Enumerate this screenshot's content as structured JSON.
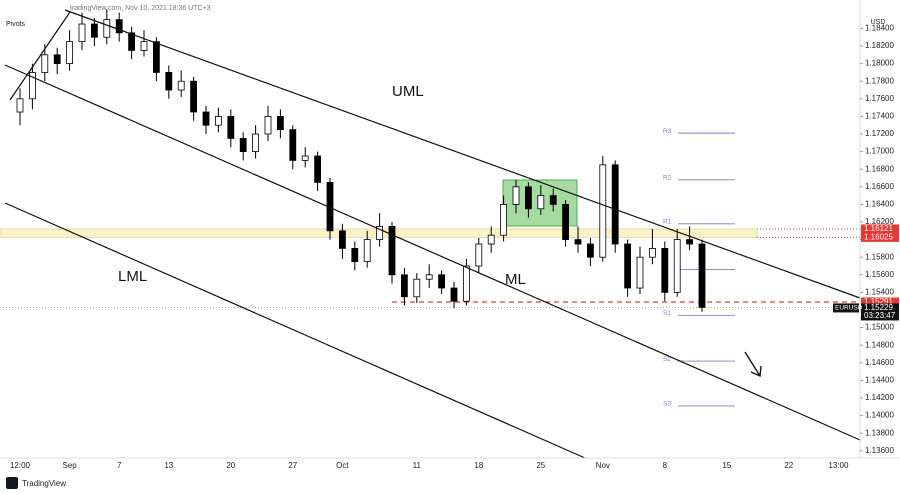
{
  "header": "tradingView.com, Nov 10, 2021 18:36 UTC+3",
  "indicator": "Pivots",
  "footer": "TradingView",
  "chart_data": {
    "type": "candlestick",
    "currency": "USD",
    "categories": [
      "12:00",
      null,
      null,
      null,
      "Sep",
      null,
      null,
      null,
      "7",
      null,
      null,
      null,
      "13",
      null,
      null,
      null,
      null,
      "20",
      null,
      null,
      null,
      null,
      "27",
      null,
      null,
      null,
      "Oct",
      null,
      null,
      null,
      null,
      null,
      "11",
      null,
      null,
      null,
      null,
      "18",
      null,
      null,
      null,
      null,
      "25",
      null,
      null,
      null,
      null,
      "Nov",
      null,
      null,
      null,
      null,
      "8",
      null,
      null,
      null,
      null,
      "15",
      null,
      null,
      null,
      null,
      "22",
      null,
      null,
      null,
      "13:00",
      null
    ],
    "values": [
      [
        1.1745,
        1.1772,
        1.173,
        1.176
      ],
      [
        1.176,
        1.18,
        1.1748,
        1.179
      ],
      [
        1.179,
        1.1822,
        1.178,
        1.181
      ],
      [
        1.181,
        1.1818,
        1.1788,
        1.18
      ],
      [
        1.18,
        1.1838,
        1.1792,
        1.1825
      ],
      [
        1.1825,
        1.1858,
        1.1815,
        1.1845
      ],
      [
        1.1845,
        1.1852,
        1.182,
        1.183
      ],
      [
        1.183,
        1.1862,
        1.1822,
        1.185
      ],
      [
        1.185,
        1.1858,
        1.1825,
        1.1835
      ],
      [
        1.1835,
        1.1842,
        1.1805,
        1.1815
      ],
      [
        1.1815,
        1.1838,
        1.1808,
        1.1825
      ],
      [
        1.1825,
        1.183,
        1.178,
        1.179
      ],
      [
        1.179,
        1.1798,
        1.176,
        1.177
      ],
      [
        1.177,
        1.1792,
        1.1762,
        1.178
      ],
      [
        1.178,
        1.1785,
        1.1735,
        1.1745
      ],
      [
        1.1745,
        1.1752,
        1.172,
        1.173
      ],
      [
        1.173,
        1.175,
        1.1722,
        1.174
      ],
      [
        1.174,
        1.1748,
        1.1705,
        1.1715
      ],
      [
        1.1715,
        1.1722,
        1.169,
        1.17
      ],
      [
        1.17,
        1.173,
        1.1692,
        1.172
      ],
      [
        1.172,
        1.1752,
        1.1712,
        1.174
      ],
      [
        1.174,
        1.1748,
        1.1715,
        1.1725
      ],
      [
        1.1725,
        1.173,
        1.168,
        1.169
      ],
      [
        1.169,
        1.1705,
        1.1682,
        1.1695
      ],
      [
        1.1695,
        1.17,
        1.1655,
        1.1665
      ],
      [
        1.1665,
        1.167,
        1.16,
        1.161
      ],
      [
        1.161,
        1.1618,
        1.1578,
        1.159
      ],
      [
        1.159,
        1.1598,
        1.1565,
        1.1575
      ],
      [
        1.1575,
        1.161,
        1.1568,
        1.16
      ],
      [
        1.16,
        1.163,
        1.1592,
        1.1615
      ],
      [
        1.1615,
        1.162,
        1.155,
        1.156
      ],
      [
        1.156,
        1.1568,
        1.1525,
        1.1535
      ],
      [
        1.1535,
        1.1562,
        1.1528,
        1.1555
      ],
      [
        1.1555,
        1.1572,
        1.1545,
        1.156
      ],
      [
        1.156,
        1.1565,
        1.1538,
        1.1545
      ],
      [
        1.1545,
        1.1552,
        1.1522,
        1.153
      ],
      [
        1.153,
        1.1578,
        1.1525,
        1.157
      ],
      [
        1.157,
        1.1602,
        1.1562,
        1.1595
      ],
      [
        1.1595,
        1.1615,
        1.1585,
        1.1605
      ],
      [
        1.1605,
        1.165,
        1.1598,
        1.164
      ],
      [
        1.164,
        1.1668,
        1.163,
        1.166
      ],
      [
        1.166,
        1.1665,
        1.1625,
        1.1635
      ],
      [
        1.1635,
        1.1662,
        1.1628,
        1.165
      ],
      [
        1.165,
        1.1658,
        1.1632,
        1.164
      ],
      [
        1.164,
        1.1645,
        1.1592,
        1.16
      ],
      [
        1.16,
        1.1615,
        1.1585,
        1.1595
      ],
      [
        1.1595,
        1.1602,
        1.157,
        1.158
      ],
      [
        1.158,
        1.1695,
        1.1575,
        1.1685
      ],
      [
        1.1685,
        1.169,
        1.1585,
        1.1595
      ],
      [
        1.1595,
        1.16,
        1.1535,
        1.1545
      ],
      [
        1.1545,
        1.1592,
        1.1538,
        1.158
      ],
      [
        1.158,
        1.1612,
        1.1572,
        1.159
      ],
      [
        1.159,
        1.1598,
        1.153,
        1.154
      ],
      [
        1.154,
        1.1612,
        1.1535,
        1.16
      ],
      [
        1.16,
        1.1615,
        1.1588,
        1.1595
      ],
      [
        1.1595,
        1.16,
        1.1518,
        1.1523
      ],
      null,
      null,
      null,
      null,
      null,
      null,
      null,
      null,
      null,
      null,
      null,
      null
    ],
    "up_color": "#ffffff",
    "down_color": "#000000",
    "ylim": [
      1.13518,
      1.18723
    ],
    "yticks": [
      {
        "value": 1.136,
        "label": "1.13600"
      },
      {
        "value": 1.138,
        "label": "1.13800"
      },
      {
        "value": 1.14,
        "label": "1.14000"
      },
      {
        "value": 1.142,
        "label": "1.14200"
      },
      {
        "value": 1.144,
        "label": "1.14400"
      },
      {
        "value": 1.146,
        "label": "1.14600"
      },
      {
        "value": 1.148,
        "label": "1.14800"
      },
      {
        "value": 1.15,
        "label": "1.15000"
      },
      {
        "value": 1.152,
        "label": "1.15200"
      },
      {
        "value": 1.154,
        "label": "1.15400"
      },
      {
        "value": 1.156,
        "label": "1.15600"
      },
      {
        "value": 1.158,
        "label": "1.15800"
      },
      {
        "value": 1.16,
        "label": "1.16000"
      },
      {
        "value": 1.162,
        "label": "1.16200"
      },
      {
        "value": 1.164,
        "label": "1.16400"
      },
      {
        "value": 1.166,
        "label": "1.16600"
      },
      {
        "value": 1.168,
        "label": "1.16800"
      },
      {
        "value": 1.17,
        "label": "1.17000"
      },
      {
        "value": 1.172,
        "label": "1.17200"
      },
      {
        "value": 1.174,
        "label": "1.17400"
      },
      {
        "value": 1.176,
        "label": "1.17600"
      },
      {
        "value": 1.178,
        "label": "1.17800"
      },
      {
        "value": 1.18,
        "label": "1.18000"
      },
      {
        "value": 1.182,
        "label": "1.18200"
      },
      {
        "value": 1.184,
        "label": "1.18400"
      }
    ],
    "annotations": {
      "uml": "UML",
      "ml": "ML",
      "lml": "LML"
    },
    "pivot_color": "#7b7fc8",
    "pivots": [
      {
        "name": "R3",
        "value": 1.1721
      },
      {
        "name": "R2",
        "value": 1.1668
      },
      {
        "name": "R1",
        "value": 1.1618
      },
      {
        "name": "P",
        "value": 1.1566
      },
      {
        "name": "S1",
        "value": 1.1514
      },
      {
        "name": "S2",
        "value": 1.1462
      },
      {
        "name": "S3",
        "value": 1.1411
      }
    ],
    "zone": {
      "high": 1.16121,
      "low": 1.16025,
      "color": "#fdf1c6"
    },
    "support": {
      "value": 1.15291,
      "color": "#e53935"
    },
    "last": {
      "symbol": "EURUSD",
      "price": 1.15229,
      "countdown": "03:23:47"
    }
  }
}
